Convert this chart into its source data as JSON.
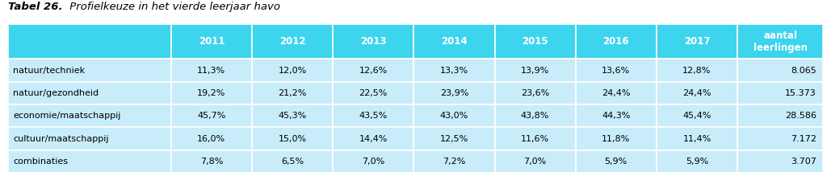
{
  "title_bold": "Tabel 26.",
  "title_italic": " Profielkeuze in het vierde leerjaar havo",
  "header_bg": "#3DD4EE",
  "row_bg": "#C8ECFA",
  "outer_bg": "#FFFFFF",
  "col_headers": [
    "2011",
    "2012",
    "2013",
    "2014",
    "2015",
    "2016",
    "2017",
    "aantal\nleerlingen"
  ],
  "row_labels": [
    "natuur/techniek",
    "natuur/gezondheid",
    "economie/maatschappij",
    "cultuur/maatschappij",
    "combinaties"
  ],
  "data": [
    [
      "11,3%",
      "12,0%",
      "12,6%",
      "13,3%",
      "13,9%",
      "13,6%",
      "12,8%",
      "8.065"
    ],
    [
      "19,2%",
      "21,2%",
      "22,5%",
      "23,9%",
      "23,6%",
      "24,4%",
      "24,4%",
      "15.373"
    ],
    [
      "45,7%",
      "45,3%",
      "43,5%",
      "43,0%",
      "43,8%",
      "44,3%",
      "45,4%",
      "28.586"
    ],
    [
      "16,0%",
      "15,0%",
      "14,4%",
      "12,5%",
      "11,6%",
      "11,8%",
      "11,4%",
      "7.172"
    ],
    [
      "7,8%",
      "6,5%",
      "7,0%",
      "7,2%",
      "7,0%",
      "5,9%",
      "5,9%",
      "3.707"
    ]
  ],
  "font_size": 8.0,
  "header_font_size": 8.5,
  "title_font_size": 9.5,
  "fig_width": 10.24,
  "fig_height": 2.19,
  "dpi": 100
}
